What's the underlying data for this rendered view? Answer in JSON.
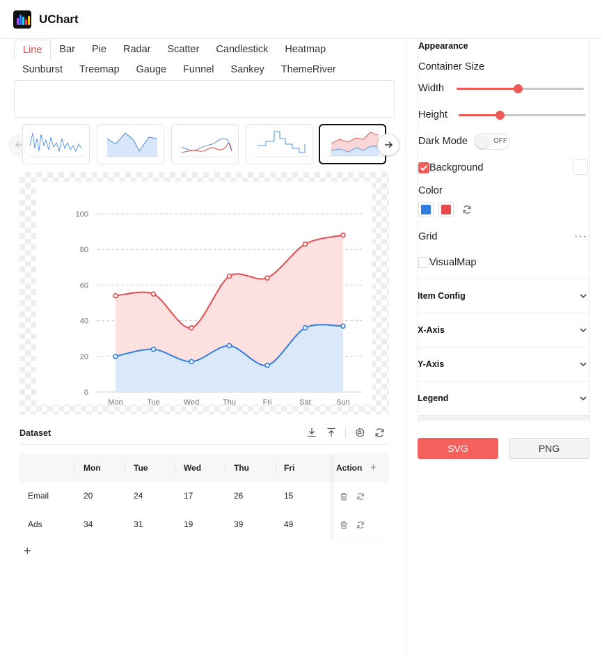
{
  "header": {
    "title": "UChart"
  },
  "tabs": {
    "row1": [
      "Line",
      "Bar",
      "Pie",
      "Radar",
      "Scatter",
      "Candlestick",
      "Heatmap"
    ],
    "row2": [
      "Sunburst",
      "Treemap",
      "Gauge",
      "Funnel",
      "Sankey",
      "ThemeRiver"
    ],
    "active": "Line"
  },
  "thumbnails": [
    "line-thumbnail",
    "area-thumbnail",
    "smooth-line-thumbnail",
    "step-line-thumbnail",
    "stacked-area-thumbnail"
  ],
  "chart_data": {
    "type": "area",
    "categories": [
      "Mon",
      "Tue",
      "Wed",
      "Thu",
      "Fri",
      "Sat",
      "Sun"
    ],
    "series": [
      {
        "values": [
          20,
          24,
          17,
          26,
          15,
          36,
          37
        ],
        "color": "#2f7de1",
        "fill": "#dae8fa"
      },
      {
        "values": [
          54,
          55,
          36,
          65,
          64,
          83,
          88
        ],
        "color": "#e64a4a",
        "fill": "#fde0e0"
      }
    ],
    "ylim": [
      0,
      100
    ],
    "yticks": [
      "0",
      "20",
      "40",
      "60",
      "80",
      "100"
    ],
    "grid": true,
    "smooth": true
  },
  "dataset": {
    "title": "Dataset",
    "columns": [
      "Mon",
      "Tue",
      "Wed",
      "Thu",
      "Fri"
    ],
    "action_header": "Action",
    "rows": [
      {
        "name": "Email",
        "values": [
          "20",
          "24",
          "17",
          "26",
          "15"
        ]
      },
      {
        "name": "Ads",
        "values": [
          "34",
          "31",
          "19",
          "39",
          "49"
        ]
      }
    ]
  },
  "panel": {
    "appearance": "Appearance",
    "container_size": "Container Size",
    "width_label": "Width",
    "width_value": 0.48,
    "height_label": "Height",
    "height_value": 0.32,
    "dark_mode_label": "Dark Mode",
    "dark_mode_state": "OFF",
    "background_label": "Background",
    "color_label": "Color",
    "colors": [
      "#2f7de1",
      "#e64a4a"
    ],
    "grid_label": "Grid",
    "visualmap_label": "VisualMap",
    "sections": [
      "Item Config",
      "X-Axis",
      "Y-Axis",
      "Legend"
    ],
    "svg_button": "SVG",
    "png_button": "PNG"
  }
}
